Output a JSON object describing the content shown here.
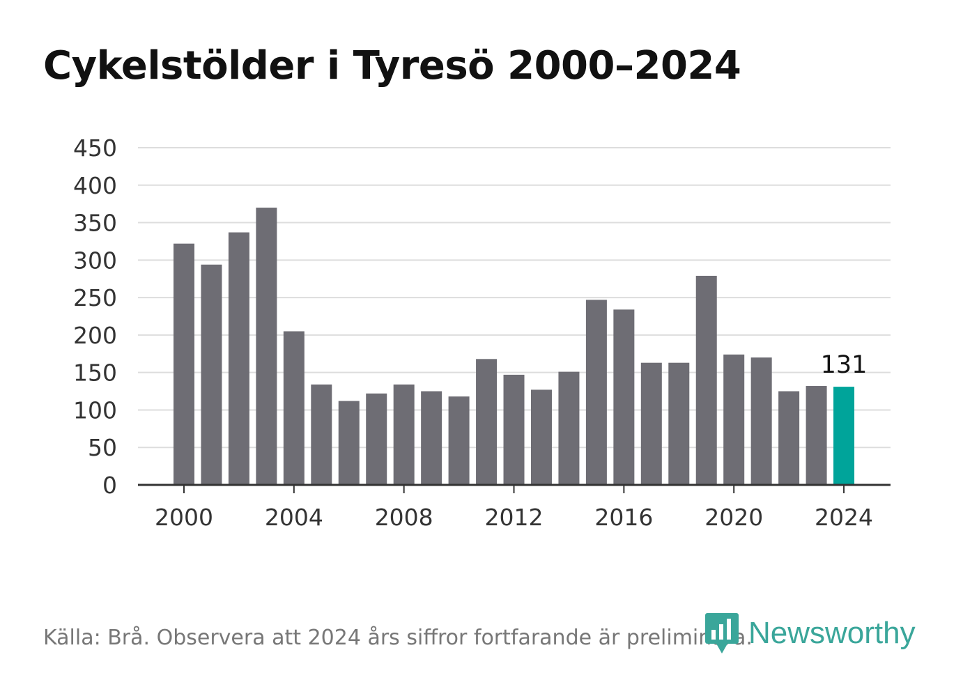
{
  "header": {
    "title": "Cykelstölder i Tyresö 2000–2024"
  },
  "footer": {
    "source": "Källa: Brå. Observera att 2024 års siffror fortfarande är preliminära."
  },
  "brand": {
    "name": "Newsworthy",
    "icon": "newsworthy-logo-icon",
    "color": "#3aa69a"
  },
  "chart_data": {
    "type": "bar",
    "categories": [
      "2000",
      "2001",
      "2002",
      "2003",
      "2004",
      "2005",
      "2006",
      "2007",
      "2008",
      "2009",
      "2010",
      "2011",
      "2012",
      "2013",
      "2014",
      "2015",
      "2016",
      "2017",
      "2018",
      "2019",
      "2020",
      "2021",
      "2022",
      "2023",
      "2024"
    ],
    "values": [
      322,
      294,
      337,
      370,
      205,
      134,
      112,
      122,
      134,
      125,
      118,
      168,
      147,
      127,
      151,
      247,
      234,
      163,
      163,
      279,
      174,
      170,
      125,
      132,
      131
    ],
    "x_tick_labels": [
      "2000",
      "2004",
      "2008",
      "2012",
      "2016",
      "2020",
      "2024"
    ],
    "y_ticks": [
      0,
      50,
      100,
      150,
      200,
      250,
      300,
      350,
      400,
      450
    ],
    "ylim": [
      0,
      450
    ],
    "highlight": {
      "category": "2024",
      "label": "131"
    },
    "colors": {
      "bar": "#6e6d74",
      "highlight": "#00a49a",
      "grid": "#dddddd",
      "axis": "#333333"
    },
    "grid": true,
    "legend": "none"
  }
}
